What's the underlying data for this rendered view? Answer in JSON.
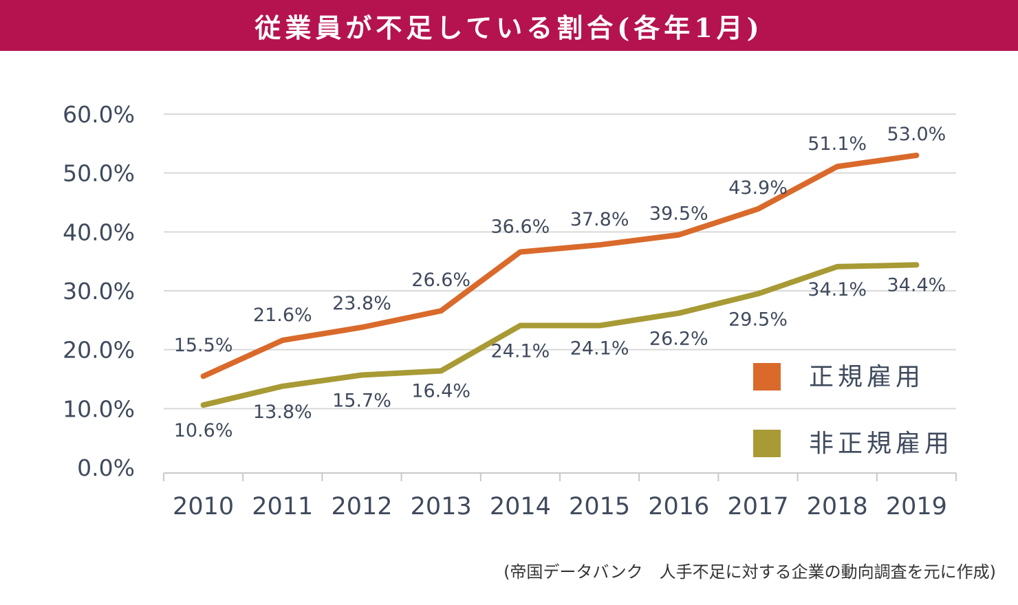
{
  "title": "従業員が不足している割合(各年1月)",
  "source_note": "(帝国データバンク　人手不足に対する企業の動向調査を元に作成)",
  "colors": {
    "title_bar": "#B5134F",
    "regular": "#D96A2B",
    "non_regular": "#A89A35",
    "axis_text": "#3F4A5C",
    "grid": "#D9D9D9"
  },
  "chart_data": {
    "type": "line",
    "categories": [
      "2010",
      "2011",
      "2012",
      "2013",
      "2014",
      "2015",
      "2016",
      "2017",
      "2018",
      "2019"
    ],
    "ylim": [
      0,
      60
    ],
    "yticks": [
      "0.0%",
      "10.0%",
      "20.0%",
      "30.0%",
      "40.0%",
      "50.0%",
      "60.0%"
    ],
    "grid": true,
    "legend_position": "bottom-right",
    "series": [
      {
        "name": "正規雇用",
        "color": "#D96A2B",
        "values": [
          15.5,
          21.6,
          23.8,
          26.6,
          36.6,
          37.8,
          39.5,
          43.9,
          51.1,
          53.0
        ],
        "labels": [
          "15.5%",
          "21.6%",
          "23.8%",
          "26.6%",
          "36.6%",
          "37.8%",
          "39.5%",
          "43.9%",
          "51.1%",
          "53.0%"
        ]
      },
      {
        "name": "非正規雇用",
        "color": "#A89A35",
        "values": [
          10.6,
          13.8,
          15.7,
          16.4,
          24.1,
          24.1,
          26.2,
          29.5,
          34.1,
          34.4
        ],
        "labels": [
          "10.6%",
          "13.8%",
          "15.7%",
          "16.4%",
          "24.1%",
          "24.1%",
          "26.2%",
          "29.5%",
          "34.1%",
          "34.4%"
        ]
      }
    ]
  }
}
